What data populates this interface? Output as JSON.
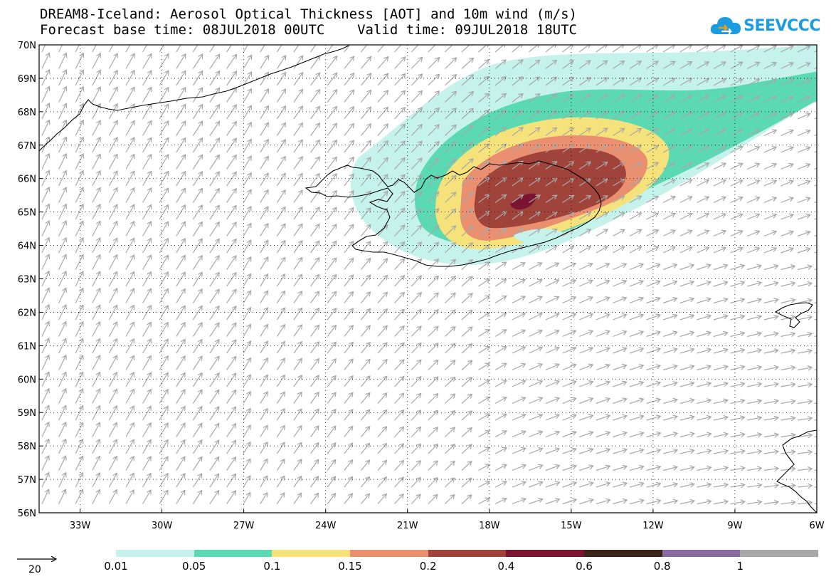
{
  "title": {
    "line1": "DREAM8-Iceland: Aerosol Optical Thickness [AOT] and 10m wind (m/s)",
    "line2": "Forecast base time: 08JUL2018 00UTC    Valid time: 09JUL2018 18UTC"
  },
  "logo": {
    "text": "SEEVCCC",
    "icon": "cloud-icon",
    "color": "#1b9be0"
  },
  "map": {
    "lon_range": [
      -34.5,
      -6
    ],
    "lat_range": [
      56,
      70
    ],
    "lat_labels": [
      "70N",
      "69N",
      "68N",
      "67N",
      "66N",
      "65N",
      "64N",
      "63N",
      "62N",
      "61N",
      "60N",
      "59N",
      "58N",
      "57N",
      "56N"
    ],
    "lon_labels": [
      "33W",
      "30W",
      "27W",
      "24W",
      "21W",
      "18W",
      "15W",
      "12W",
      "9W",
      "6W"
    ],
    "grid": "dotted"
  },
  "colorbar": {
    "labels": [
      "0.01",
      "0.05",
      "0.1",
      "0.15",
      "0.2",
      "0.4",
      "0.6",
      "0.8",
      "1"
    ],
    "colors": [
      "#c5f2ea",
      "#5ad9b2",
      "#f5e27a",
      "#ea9070",
      "#a0433b",
      "#7a1432",
      "#3d2418",
      "#8a6aa0",
      "#a8a8a8"
    ]
  },
  "wind_reference": {
    "label": "20",
    "speed_ms": 20
  }
}
